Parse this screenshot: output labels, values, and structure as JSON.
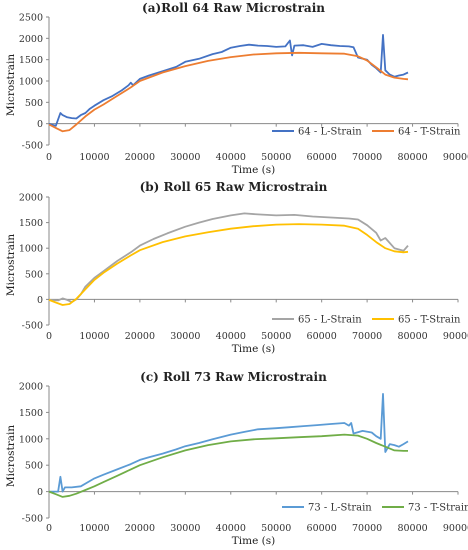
{
  "chart_data": [
    {
      "type": "line",
      "title": "(a)Roll 64 Raw Microstrain",
      "xlabel": "Time (s)",
      "ylabel": "Microstrain",
      "xlim": [
        0,
        90000
      ],
      "ylim": [
        -500,
        2500
      ],
      "xticks": [
        0,
        10000,
        20000,
        30000,
        40000,
        50000,
        60000,
        70000,
        80000,
        90000
      ],
      "yticks": [
        -500,
        0,
        500,
        1000,
        1500,
        2000,
        2500
      ],
      "grid": false,
      "legend": "bottom-right",
      "series": [
        {
          "name": "64 - L-Strain",
          "color": "#4472c4",
          "x": [
            0,
            1500,
            2000,
            2500,
            3000,
            4000,
            5000,
            6000,
            7000,
            8000,
            9000,
            10000,
            12000,
            14000,
            16000,
            17500,
            18000,
            18500,
            20000,
            22000,
            25000,
            28000,
            30000,
            33000,
            36000,
            38000,
            40000,
            42000,
            44000,
            46000,
            48000,
            50000,
            52000,
            53000,
            53500,
            54000,
            56000,
            58000,
            60000,
            62000,
            64000,
            66000,
            67000,
            68000,
            70000,
            71000,
            72000,
            73000,
            73500,
            74000,
            75000,
            76000,
            77000,
            78000,
            79000
          ],
          "y": [
            0,
            -50,
            100,
            250,
            200,
            150,
            130,
            120,
            200,
            250,
            350,
            420,
            550,
            650,
            780,
            900,
            960,
            900,
            1050,
            1130,
            1230,
            1330,
            1450,
            1520,
            1630,
            1680,
            1780,
            1820,
            1850,
            1830,
            1820,
            1800,
            1810,
            1950,
            1600,
            1830,
            1840,
            1800,
            1870,
            1840,
            1820,
            1810,
            1790,
            1550,
            1500,
            1380,
            1300,
            1200,
            2080,
            1250,
            1150,
            1100,
            1130,
            1150,
            1200
          ]
        },
        {
          "name": "64 - T-Strain",
          "color": "#ed7d31",
          "x": [
            0,
            1500,
            3000,
            4500,
            6000,
            8000,
            10000,
            12000,
            15000,
            18000,
            20000,
            25000,
            30000,
            35000,
            40000,
            45000,
            50000,
            55000,
            60000,
            65000,
            68000,
            70000,
            72000,
            74000,
            76000,
            78000,
            79000
          ],
          "y": [
            -20,
            -100,
            -180,
            -150,
            -20,
            170,
            330,
            450,
            650,
            850,
            1000,
            1200,
            1350,
            1470,
            1560,
            1620,
            1650,
            1660,
            1650,
            1640,
            1580,
            1480,
            1320,
            1150,
            1080,
            1050,
            1040
          ]
        }
      ]
    },
    {
      "type": "line",
      "title": "(b) Roll 65 Raw Microstrain",
      "xlabel": "Time (s)",
      "ylabel": "Microstrain",
      "xlim": [
        0,
        90000
      ],
      "ylim": [
        -500,
        2000
      ],
      "xticks": [
        0,
        10000,
        20000,
        30000,
        40000,
        50000,
        60000,
        70000,
        80000,
        90000
      ],
      "yticks": [
        -500,
        0,
        500,
        1000,
        1500,
        2000
      ],
      "grid": false,
      "legend": "bottom-right",
      "series": [
        {
          "name": "65 - L-Strain",
          "color": "#a5a5a5",
          "x": [
            0,
            2000,
            3000,
            4000,
            5000,
            6000,
            7000,
            8000,
            10000,
            12000,
            15000,
            18000,
            20000,
            23000,
            26000,
            30000,
            33000,
            36000,
            40000,
            43000,
            46000,
            50000,
            54000,
            58000,
            62000,
            66000,
            68000,
            70000,
            72000,
            73000,
            74000,
            76000,
            78000,
            79000
          ],
          "y": [
            -10,
            -20,
            20,
            -10,
            -50,
            0,
            100,
            250,
            420,
            550,
            750,
            920,
            1050,
            1180,
            1290,
            1420,
            1500,
            1570,
            1640,
            1680,
            1660,
            1640,
            1650,
            1620,
            1600,
            1580,
            1560,
            1450,
            1300,
            1150,
            1200,
            1000,
            950,
            1050
          ]
        },
        {
          "name": "65 - T-Strain",
          "color": "#ffc000",
          "x": [
            0,
            1500,
            3000,
            4500,
            6000,
            8000,
            10000,
            12000,
            15000,
            18000,
            20000,
            25000,
            30000,
            35000,
            40000,
            45000,
            50000,
            55000,
            60000,
            65000,
            68000,
            70000,
            72000,
            74000,
            76000,
            78000,
            79000
          ],
          "y": [
            -10,
            -60,
            -110,
            -90,
            10,
            200,
            380,
            520,
            700,
            860,
            960,
            1120,
            1230,
            1310,
            1380,
            1430,
            1460,
            1470,
            1460,
            1440,
            1380,
            1260,
            1120,
            1000,
            940,
            920,
            930
          ]
        }
      ]
    },
    {
      "type": "line",
      "title": "(c) Roll 73 Raw Microstrain",
      "xlabel": "Time (s)",
      "ylabel": "Microstrain",
      "xlim": [
        0,
        90000
      ],
      "ylim": [
        -500,
        2000
      ],
      "xticks": [
        0,
        10000,
        20000,
        30000,
        40000,
        50000,
        60000,
        70000,
        80000,
        90000
      ],
      "yticks": [
        -500,
        0,
        500,
        1000,
        1500,
        2000
      ],
      "grid": false,
      "legend": "bottom-right",
      "series": [
        {
          "name": "73 - L-Strain",
          "color": "#5b9bd5",
          "x": [
            0,
            2000,
            2500,
            3000,
            3500,
            5000,
            7000,
            9000,
            10000,
            12000,
            15000,
            18000,
            20000,
            22000,
            25000,
            28000,
            30000,
            33000,
            36000,
            40000,
            43000,
            46000,
            50000,
            53000,
            56000,
            59000,
            62000,
            65000,
            66000,
            66500,
            67000,
            69000,
            71000,
            72000,
            73000,
            73500,
            74000,
            75000,
            76000,
            77000,
            78000,
            79000
          ],
          "y": [
            0,
            0,
            280,
            0,
            80,
            80,
            100,
            200,
            250,
            320,
            420,
            520,
            600,
            650,
            720,
            800,
            860,
            920,
            990,
            1080,
            1130,
            1180,
            1200,
            1220,
            1240,
            1260,
            1280,
            1300,
            1250,
            1300,
            1100,
            1150,
            1120,
            1050,
            1000,
            1850,
            750,
            900,
            880,
            850,
            900,
            950
          ]
        },
        {
          "name": "73 - T-Strain",
          "color": "#70ad47",
          "x": [
            0,
            1500,
            3000,
            4500,
            6000,
            8000,
            10000,
            12000,
            15000,
            18000,
            20000,
            25000,
            30000,
            35000,
            40000,
            45000,
            50000,
            55000,
            60000,
            65000,
            68000,
            70000,
            72000,
            74000,
            76000,
            78000,
            79000
          ],
          "y": [
            0,
            -50,
            -100,
            -80,
            -40,
            30,
            100,
            180,
            300,
            420,
            500,
            650,
            780,
            880,
            950,
            990,
            1010,
            1030,
            1050,
            1080,
            1060,
            1000,
            920,
            850,
            780,
            770,
            770
          ]
        }
      ]
    }
  ]
}
